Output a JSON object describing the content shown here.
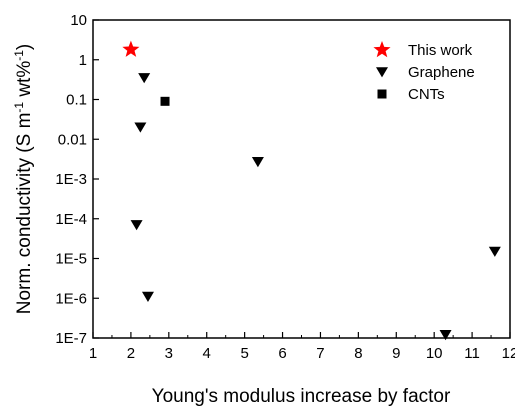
{
  "chart_data": {
    "type": "scatter",
    "x_axis": {
      "label": "Young's modulus increase by factor",
      "range": [
        1,
        12
      ],
      "ticks": [
        1,
        2,
        3,
        4,
        5,
        6,
        7,
        8,
        9,
        10,
        11,
        12
      ],
      "tick_labels": [
        "1",
        "2",
        "3",
        "4",
        "5",
        "6",
        "7",
        "8",
        "9",
        "10",
        "11",
        "12"
      ]
    },
    "y_axis": {
      "label_parts": {
        "prefix": "Norm. conductivity (S m",
        "sup1": "-1",
        "middle": " wt%",
        "sup2": "-1",
        "suffix": ")"
      },
      "scale": "log",
      "range": [
        1e-07,
        10
      ],
      "ticks": [
        1e-07,
        1e-06,
        1e-05,
        0.0001,
        0.001,
        0.01,
        0.1,
        1,
        10
      ],
      "tick_labels": [
        "1E-7",
        "1E-6",
        "1E-5",
        "1E-4",
        "1E-3",
        "0.01",
        "0.1",
        "1",
        "10"
      ]
    },
    "grid": false,
    "legend_position": "top-right",
    "series": [
      {
        "name": "This work",
        "marker": "star",
        "color": "#ff0000",
        "points": [
          {
            "x": 2.0,
            "y": 1.8
          }
        ]
      },
      {
        "name": "Graphene",
        "marker": "triangle-down",
        "color": "#000000",
        "points": [
          {
            "x": 2.35,
            "y": 0.35
          },
          {
            "x": 2.25,
            "y": 0.02
          },
          {
            "x": 2.15,
            "y": 7e-05
          },
          {
            "x": 2.45,
            "y": 1.1e-06
          },
          {
            "x": 5.35,
            "y": 0.0027
          },
          {
            "x": 10.3,
            "y": 1.2e-07
          },
          {
            "x": 11.6,
            "y": 1.5e-05
          }
        ]
      },
      {
        "name": "CNTs",
        "marker": "square",
        "color": "#000000",
        "points": [
          {
            "x": 2.9,
            "y": 0.09
          }
        ]
      }
    ]
  }
}
